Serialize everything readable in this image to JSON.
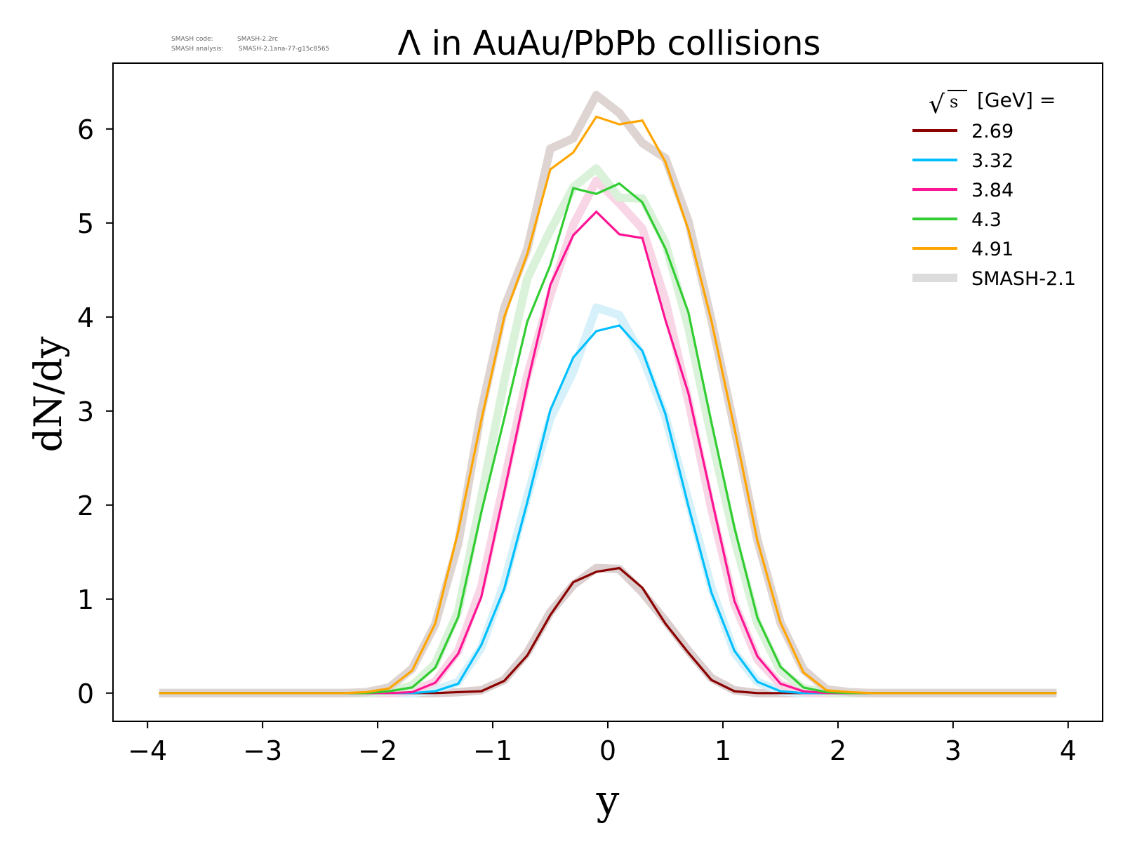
{
  "header": {
    "code_label": "SMASH code:",
    "code_value": "SMASH-2.2rc",
    "analysis_label": "SMASH analysis:",
    "analysis_value": "SMASH-2.1ana-77-g15c8565"
  },
  "chart_data": {
    "type": "line",
    "title": "Λ in AuAu/PbPb collisions",
    "xlabel": "y",
    "ylabel": "dN/dy",
    "xlim": [
      -4.3,
      4.3
    ],
    "ylim": [
      -0.3,
      6.7
    ],
    "xticks": [
      -4,
      -3,
      -2,
      -1,
      0,
      1,
      2,
      3,
      4
    ],
    "xtick_labels": [
      "−4",
      "−3",
      "−2",
      "−1",
      "0",
      "1",
      "2",
      "3",
      "4"
    ],
    "yticks": [
      0,
      1,
      2,
      3,
      4,
      5,
      6
    ],
    "ytick_labels": [
      "0",
      "1",
      "2",
      "3",
      "4",
      "5",
      "6"
    ],
    "grid": false,
    "legend_placement": "top-right",
    "legend_title_prefix": "s",
    "legend_title": "[GeV] =",
    "x": [
      -3.9,
      -3.7,
      -3.5,
      -3.3,
      -3.1,
      -2.9,
      -2.7,
      -2.5,
      -2.3,
      -2.1,
      -1.9,
      -1.7,
      -1.5,
      -1.3,
      -1.1,
      -0.9,
      -0.7,
      -0.5,
      -0.3,
      -0.1,
      0.1,
      0.3,
      0.5,
      0.7,
      0.9,
      1.1,
      1.3,
      1.5,
      1.7,
      1.9,
      2.1,
      2.3,
      2.5,
      2.7,
      2.9,
      3.1,
      3.3,
      3.5,
      3.7,
      3.9
    ],
    "series": [
      {
        "name": "2.69",
        "color": "#8b0000",
        "values": [
          0,
          0,
          0,
          0,
          0,
          0,
          0,
          0,
          0,
          0,
          0,
          0,
          0,
          0.01,
          0.02,
          0.13,
          0.4,
          0.83,
          1.18,
          1.29,
          1.33,
          1.12,
          0.74,
          0.43,
          0.14,
          0.02,
          0,
          0,
          0,
          0,
          0,
          0,
          0,
          0,
          0,
          0,
          0,
          0,
          0,
          0
        ]
      },
      {
        "name": "3.32",
        "color": "#00bfff",
        "values": [
          0,
          0,
          0,
          0,
          0,
          0,
          0,
          0,
          0,
          0,
          0,
          0,
          0.02,
          0.1,
          0.51,
          1.11,
          2.03,
          3.01,
          3.57,
          3.85,
          3.91,
          3.64,
          2.97,
          1.99,
          1.07,
          0.45,
          0.12,
          0.02,
          0,
          0,
          0,
          0,
          0,
          0,
          0,
          0,
          0,
          0,
          0,
          0
        ]
      },
      {
        "name": "3.84",
        "color": "#ff1493",
        "values": [
          0,
          0,
          0,
          0,
          0,
          0,
          0,
          0,
          0,
          0,
          0,
          0.01,
          0.11,
          0.42,
          1.02,
          2.14,
          3.29,
          4.34,
          4.87,
          5.12,
          4.88,
          4.84,
          3.97,
          3.19,
          2.08,
          0.98,
          0.39,
          0.1,
          0.02,
          0,
          0,
          0,
          0,
          0,
          0,
          0,
          0,
          0,
          0,
          0
        ]
      },
      {
        "name": "4.3",
        "color": "#32cd32",
        "values": [
          0,
          0,
          0,
          0,
          0,
          0,
          0,
          0,
          0,
          0,
          0.02,
          0.06,
          0.27,
          0.81,
          1.92,
          2.92,
          3.95,
          4.55,
          5.37,
          5.31,
          5.42,
          5.22,
          4.73,
          4.05,
          2.88,
          1.76,
          0.8,
          0.28,
          0.06,
          0.01,
          0,
          0,
          0,
          0,
          0,
          0,
          0,
          0,
          0,
          0
        ]
      },
      {
        "name": "4.91",
        "color": "#ffa500",
        "values": [
          0,
          0,
          0,
          0,
          0,
          0,
          0,
          0,
          0,
          0.01,
          0.05,
          0.24,
          0.74,
          1.72,
          2.9,
          4.0,
          4.67,
          5.57,
          5.75,
          6.13,
          6.05,
          6.09,
          5.65,
          4.93,
          3.96,
          2.82,
          1.62,
          0.75,
          0.22,
          0.03,
          0.01,
          0,
          0,
          0,
          0,
          0,
          0,
          0,
          0,
          0
        ]
      }
    ],
    "reference_series": {
      "name": "SMASH-2.1",
      "color": "#dcdcdc",
      "curves": [
        {
          "color": "#dccfcf",
          "values": [
            0,
            0,
            0,
            0,
            0,
            0,
            0,
            0,
            0,
            0,
            0,
            0,
            0,
            0.01,
            0.03,
            0.14,
            0.43,
            0.86,
            1.15,
            1.33,
            1.32,
            1.07,
            0.77,
            0.45,
            0.16,
            0.03,
            0,
            0,
            0,
            0,
            0,
            0,
            0,
            0,
            0,
            0,
            0,
            0,
            0,
            0
          ]
        },
        {
          "color": "#d6f1fa",
          "values": [
            0,
            0,
            0,
            0,
            0,
            0,
            0,
            0,
            0,
            0,
            0,
            0,
            0.03,
            0.12,
            0.48,
            1.17,
            2.09,
            2.92,
            3.42,
            4.1,
            4.02,
            3.58,
            2.94,
            2.05,
            1.12,
            0.43,
            0.12,
            0.02,
            0,
            0,
            0,
            0,
            0,
            0,
            0,
            0,
            0,
            0,
            0,
            0
          ]
        },
        {
          "color": "#f8d6e6",
          "values": [
            0,
            0,
            0,
            0,
            0,
            0,
            0,
            0,
            0,
            0,
            0,
            0.02,
            0.12,
            0.45,
            1.13,
            2.25,
            3.38,
            4.23,
            4.98,
            5.45,
            5.21,
            4.94,
            4.18,
            3.11,
            1.96,
            0.95,
            0.36,
            0.09,
            0.01,
            0,
            0,
            0,
            0,
            0,
            0,
            0,
            0,
            0,
            0,
            0
          ]
        },
        {
          "color": "#d9f2d9",
          "values": [
            0,
            0,
            0,
            0,
            0,
            0,
            0,
            0,
            0,
            0,
            0.02,
            0.08,
            0.31,
            0.87,
            2.08,
            3.32,
            4.41,
            4.92,
            5.38,
            5.58,
            5.27,
            5.26,
            4.79,
            3.89,
            2.72,
            1.64,
            0.74,
            0.24,
            0.05,
            0.01,
            0,
            0,
            0,
            0,
            0,
            0,
            0,
            0,
            0,
            0
          ]
        },
        {
          "color": "#ded5d2",
          "values": [
            0,
            0,
            0,
            0,
            0,
            0,
            0,
            0,
            0,
            0.01,
            0.06,
            0.26,
            0.73,
            1.59,
            3.0,
            4.1,
            4.72,
            5.79,
            5.9,
            6.36,
            6.17,
            5.85,
            5.69,
            5.02,
            3.97,
            2.82,
            1.63,
            0.75,
            0.25,
            0.04,
            0.01,
            0,
            0,
            0,
            0,
            0,
            0,
            0,
            0,
            0
          ]
        }
      ]
    }
  }
}
